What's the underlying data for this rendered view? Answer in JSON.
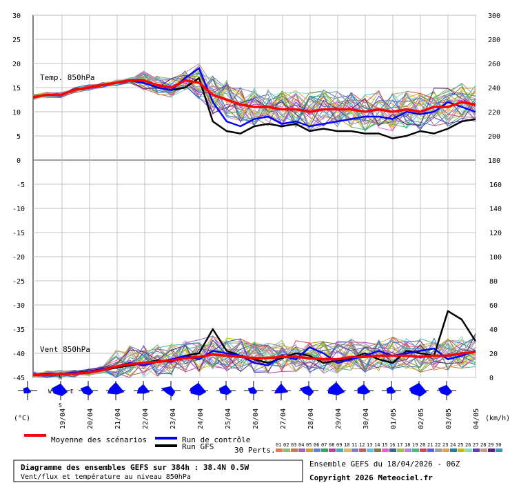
{
  "chart_data": {
    "type": "line",
    "panels": [
      {
        "label": "Temp. 850hPa",
        "left_axis_ticks": [
          "30",
          "25",
          "20",
          "15",
          "10",
          "5",
          "0"
        ],
        "left_axis_range": [
          0,
          30
        ],
        "right_axis_ticks": [
          "300",
          "280",
          "260",
          "240",
          "220",
          "200",
          "180"
        ],
        "right_axis_range": [
          180,
          300
        ],
        "mean_series": {
          "name": "Moyenne des scénarios",
          "x": [
            "18/04 12h",
            "19/04 00h",
            "19/04 12h",
            "20/04 00h",
            "20/04 12h",
            "21/04 00h",
            "21/04 12h",
            "22/04 00h",
            "22/04 12h",
            "23/04 00h",
            "23/04 12h",
            "24/04 00h",
            "24/04 12h",
            "25/04 00h",
            "25/04 12h",
            "26/04 00h",
            "26/04 12h",
            "27/04 00h",
            "27/04 12h",
            "28/04 00h",
            "28/04 12h",
            "29/04 00h",
            "29/04 12h",
            "30/04 00h",
            "30/04 12h",
            "01/05 00h",
            "01/05 12h",
            "02/05 00h",
            "02/05 12h",
            "03/05 00h",
            "03/05 12h",
            "04/05 00h",
            "04/05 12h"
          ],
          "values": [
            13,
            13.5,
            13.5,
            14.5,
            15,
            15.5,
            16,
            16.5,
            16.5,
            15.5,
            15,
            16.5,
            16,
            13.5,
            12.5,
            11.5,
            11,
            11,
            10.5,
            10.5,
            10,
            10.5,
            10.5,
            10.5,
            10,
            10.5,
            10,
            10.5,
            10,
            11,
            11,
            12,
            11.5
          ]
        },
        "control_run": {
          "name": "Run de contrôle",
          "values": [
            13,
            13.5,
            13.5,
            14.5,
            15,
            15.5,
            16,
            16.5,
            16,
            15,
            14.5,
            17,
            19,
            12,
            8,
            7,
            8.5,
            9,
            7.5,
            8,
            7,
            7.5,
            8,
            8.5,
            9,
            9,
            8.5,
            10,
            9.5,
            10,
            12,
            11,
            10
          ]
        },
        "gfs_run": {
          "name": "Run GFS",
          "values": [
            13,
            13.5,
            13.5,
            14.5,
            15,
            15.5,
            16,
            16.5,
            16,
            15,
            14.5,
            15,
            17,
            8,
            6,
            5.5,
            7,
            7.5,
            7,
            7.5,
            6,
            6.5,
            6,
            6,
            5.5,
            5.5,
            4.5,
            5,
            6,
            5.5,
            6.5,
            8,
            8.5
          ]
        }
      },
      {
        "label": "Vent 850hPa",
        "left_axis_ticks": [
          "-5",
          "-10",
          "-15",
          "-20",
          "-25",
          "-30",
          "-35",
          "-40",
          "-45"
        ],
        "left_axis_range": [
          -45,
          0
        ],
        "right_axis_ticks": [
          "160",
          "140",
          "120",
          "100",
          "80",
          "60",
          "40",
          "20",
          "0"
        ],
        "right_axis_range": [
          0,
          180
        ],
        "right_axis_unit": "(km/h)",
        "mean_series": {
          "name": "Moyenne des scénarios",
          "values": [
            2,
            2,
            3,
            3,
            4,
            6,
            9,
            11,
            12,
            13,
            14,
            16,
            17,
            19,
            18,
            17,
            16,
            16,
            17,
            17,
            16,
            15,
            15,
            17,
            17,
            18,
            18,
            18,
            17,
            18,
            18,
            20,
            21
          ]
        },
        "control_run": {
          "name": "Run de contrôle",
          "values": [
            2,
            3,
            3,
            4,
            5,
            7,
            9,
            12,
            10,
            13,
            15,
            18,
            15,
            22,
            20,
            18,
            12,
            10,
            18,
            15,
            25,
            20,
            12,
            15,
            18,
            22,
            18,
            20,
            22,
            24,
            15,
            18,
            22
          ]
        },
        "gfs_run": {
          "name": "Run GFS",
          "values": [
            2,
            2,
            3,
            4,
            4,
            6,
            8,
            10,
            12,
            14,
            13,
            18,
            20,
            40,
            22,
            18,
            15,
            12,
            16,
            20,
            18,
            12,
            14,
            16,
            20,
            15,
            12,
            22,
            20,
            18,
            55,
            48,
            30
          ]
        }
      }
    ],
    "x_tick_labels": [
      "19/04",
      "20/04",
      "21/04",
      "22/04",
      "23/04",
      "24/04",
      "25/04",
      "26/04",
      "27/04",
      "28/04",
      "29/04",
      "30/04",
      "01/05",
      "02/05",
      "03/05",
      "04/05"
    ],
    "wind_direction_labels": {
      "n": "N",
      "s": "S",
      "e": "E",
      "w": "W"
    },
    "members_count_label": "30 Perts.",
    "member_labels": [
      "01",
      "02",
      "03",
      "04",
      "05",
      "06",
      "07",
      "08",
      "09",
      "10",
      "11",
      "12",
      "13",
      "14",
      "15",
      "16",
      "17",
      "18",
      "19",
      "20",
      "21",
      "22",
      "23",
      "24",
      "25",
      "26",
      "27",
      "28",
      "29",
      "30"
    ],
    "member_colors": [
      "#e08040",
      "#90c060",
      "#c08040",
      "#a060c0",
      "#d0a020",
      "#6080e0",
      "#40a060",
      "#c040a0",
      "#40b0b0",
      "#e0c040",
      "#8080c0",
      "#c06060",
      "#60c0e0",
      "#808030",
      "#e060e0",
      "#4060a0",
      "#a0c040",
      "#c080e0",
      "#40c080",
      "#e04060",
      "#6060e0",
      "#a0a0a0",
      "#e0a060",
      "#2080a0",
      "#c0c000",
      "#80e0c0",
      "#6040c0",
      "#c0a080",
      "#602080",
      "#4090c0"
    ],
    "colors": {
      "mean": "#ff0000",
      "control": "#0000ff",
      "gfs": "#000000",
      "grid": "#c0c0c0",
      "wind_rose": "#0000ff"
    }
  },
  "units": {
    "left_unit": "(°C)",
    "right_unit": "(km/h)"
  },
  "legend": {
    "mean_label": "Moyenne des scénarios",
    "control_label": "Run de contrôle",
    "gfs_label": "Run GFS",
    "members_label": "30 Perts."
  },
  "footer": {
    "title": "Diagramme des ensembles GEFS sur 384h : 38.4N 0.5W",
    "subtitle": "Vent/flux et température au niveau 850hPa",
    "ensemble_info": "Ensemble GEFS du 18/04/2026 - 06Z",
    "copyright": "Copyright 2026 Meteociel.fr"
  }
}
